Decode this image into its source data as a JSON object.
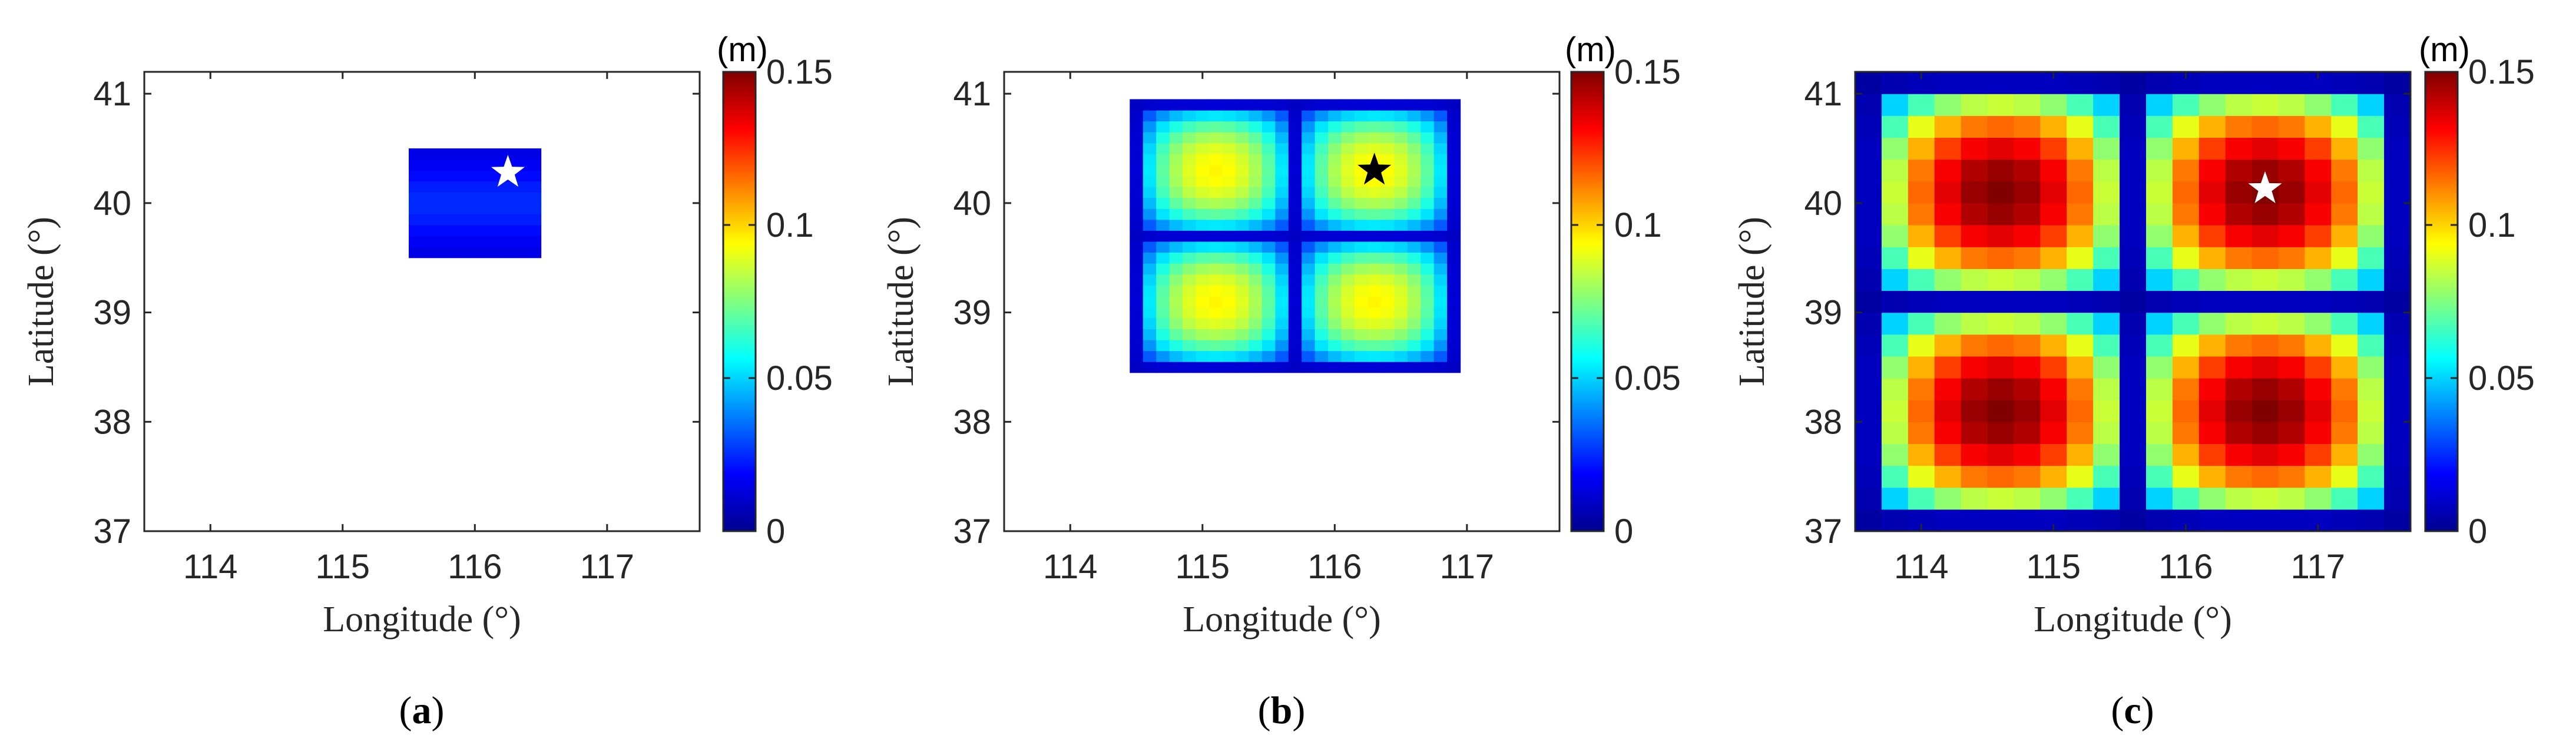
{
  "colors": {
    "axis": "#262626",
    "background": "#ffffff"
  },
  "colormap": "jet",
  "chart_data": [
    {
      "type": "heatmap",
      "panel_label": "a",
      "xlabel": "Longitude (°)",
      "ylabel": "Latitude (°)",
      "xlim": [
        113.5,
        117.7
      ],
      "ylim": [
        37,
        41.2
      ],
      "xticks": [
        114,
        115,
        116,
        117
      ],
      "yticks": [
        37,
        38,
        39,
        40,
        41
      ],
      "colorbar": {
        "min": 0,
        "max": 0.15,
        "ticks": [
          "0",
          "0.05",
          "0.1",
          "0.15"
        ],
        "unit": "(m)"
      },
      "grid": {
        "lon_start": 115.5,
        "lon_end": 116.5,
        "lat_start": 39.5,
        "lat_end": 40.5,
        "rows": 10,
        "cols": 10,
        "pattern": "low",
        "min_value": 0.015,
        "max_value": 0.025
      },
      "star": {
        "lon": 116.25,
        "lat": 40.28,
        "color": "#ffffff"
      }
    },
    {
      "type": "heatmap",
      "panel_label": "b",
      "xlabel": "Longitude (°)",
      "ylabel": "Latitude (°)",
      "xlim": [
        113.5,
        117.7
      ],
      "ylim": [
        37,
        41.2
      ],
      "xticks": [
        114,
        115,
        116,
        117
      ],
      "yticks": [
        37,
        38,
        39,
        40,
        41
      ],
      "colorbar": {
        "min": 0,
        "max": 0.15,
        "ticks": [
          "0",
          "0.05",
          "0.1",
          "0.15"
        ],
        "unit": "(m)"
      },
      "grid": {
        "lon_start": 114.45,
        "lon_end": 116.95,
        "lat_start": 38.45,
        "lat_end": 40.95,
        "rows": 25,
        "cols": 25,
        "pattern": "wave",
        "min_value": 0.01,
        "max_value": 0.095,
        "lon_period": 1.2,
        "lat_period": 1.2,
        "lon_peak": 115.1,
        "lat_peak": 40.3
      },
      "star": {
        "lon": 116.3,
        "lat": 40.3,
        "color": "#000000"
      }
    },
    {
      "type": "heatmap",
      "panel_label": "c",
      "xlabel": "Longitude (°)",
      "ylabel": "Latitude (°)",
      "xlim": [
        113.5,
        117.7
      ],
      "ylim": [
        37,
        41.2
      ],
      "xticks": [
        114,
        115,
        116,
        117
      ],
      "yticks": [
        37,
        38,
        39,
        40,
        41
      ],
      "colorbar": {
        "min": 0,
        "max": 0.15,
        "ticks": [
          "0",
          "0.05",
          "0.1",
          "0.15"
        ],
        "unit": "(m)"
      },
      "grid": {
        "lon_start": 113.5,
        "lon_end": 117.7,
        "lat_start": 37.0,
        "lat_end": 41.2,
        "rows": 21,
        "cols": 21,
        "pattern": "wave",
        "min_value": 0.005,
        "max_value": 0.15,
        "lon_period": 2.0,
        "lat_period": 2.0,
        "lon_peak": 114.6,
        "lat_peak": 40.1
      },
      "star": {
        "lon": 116.6,
        "lat": 40.13,
        "color": "#ffffff"
      }
    }
  ]
}
